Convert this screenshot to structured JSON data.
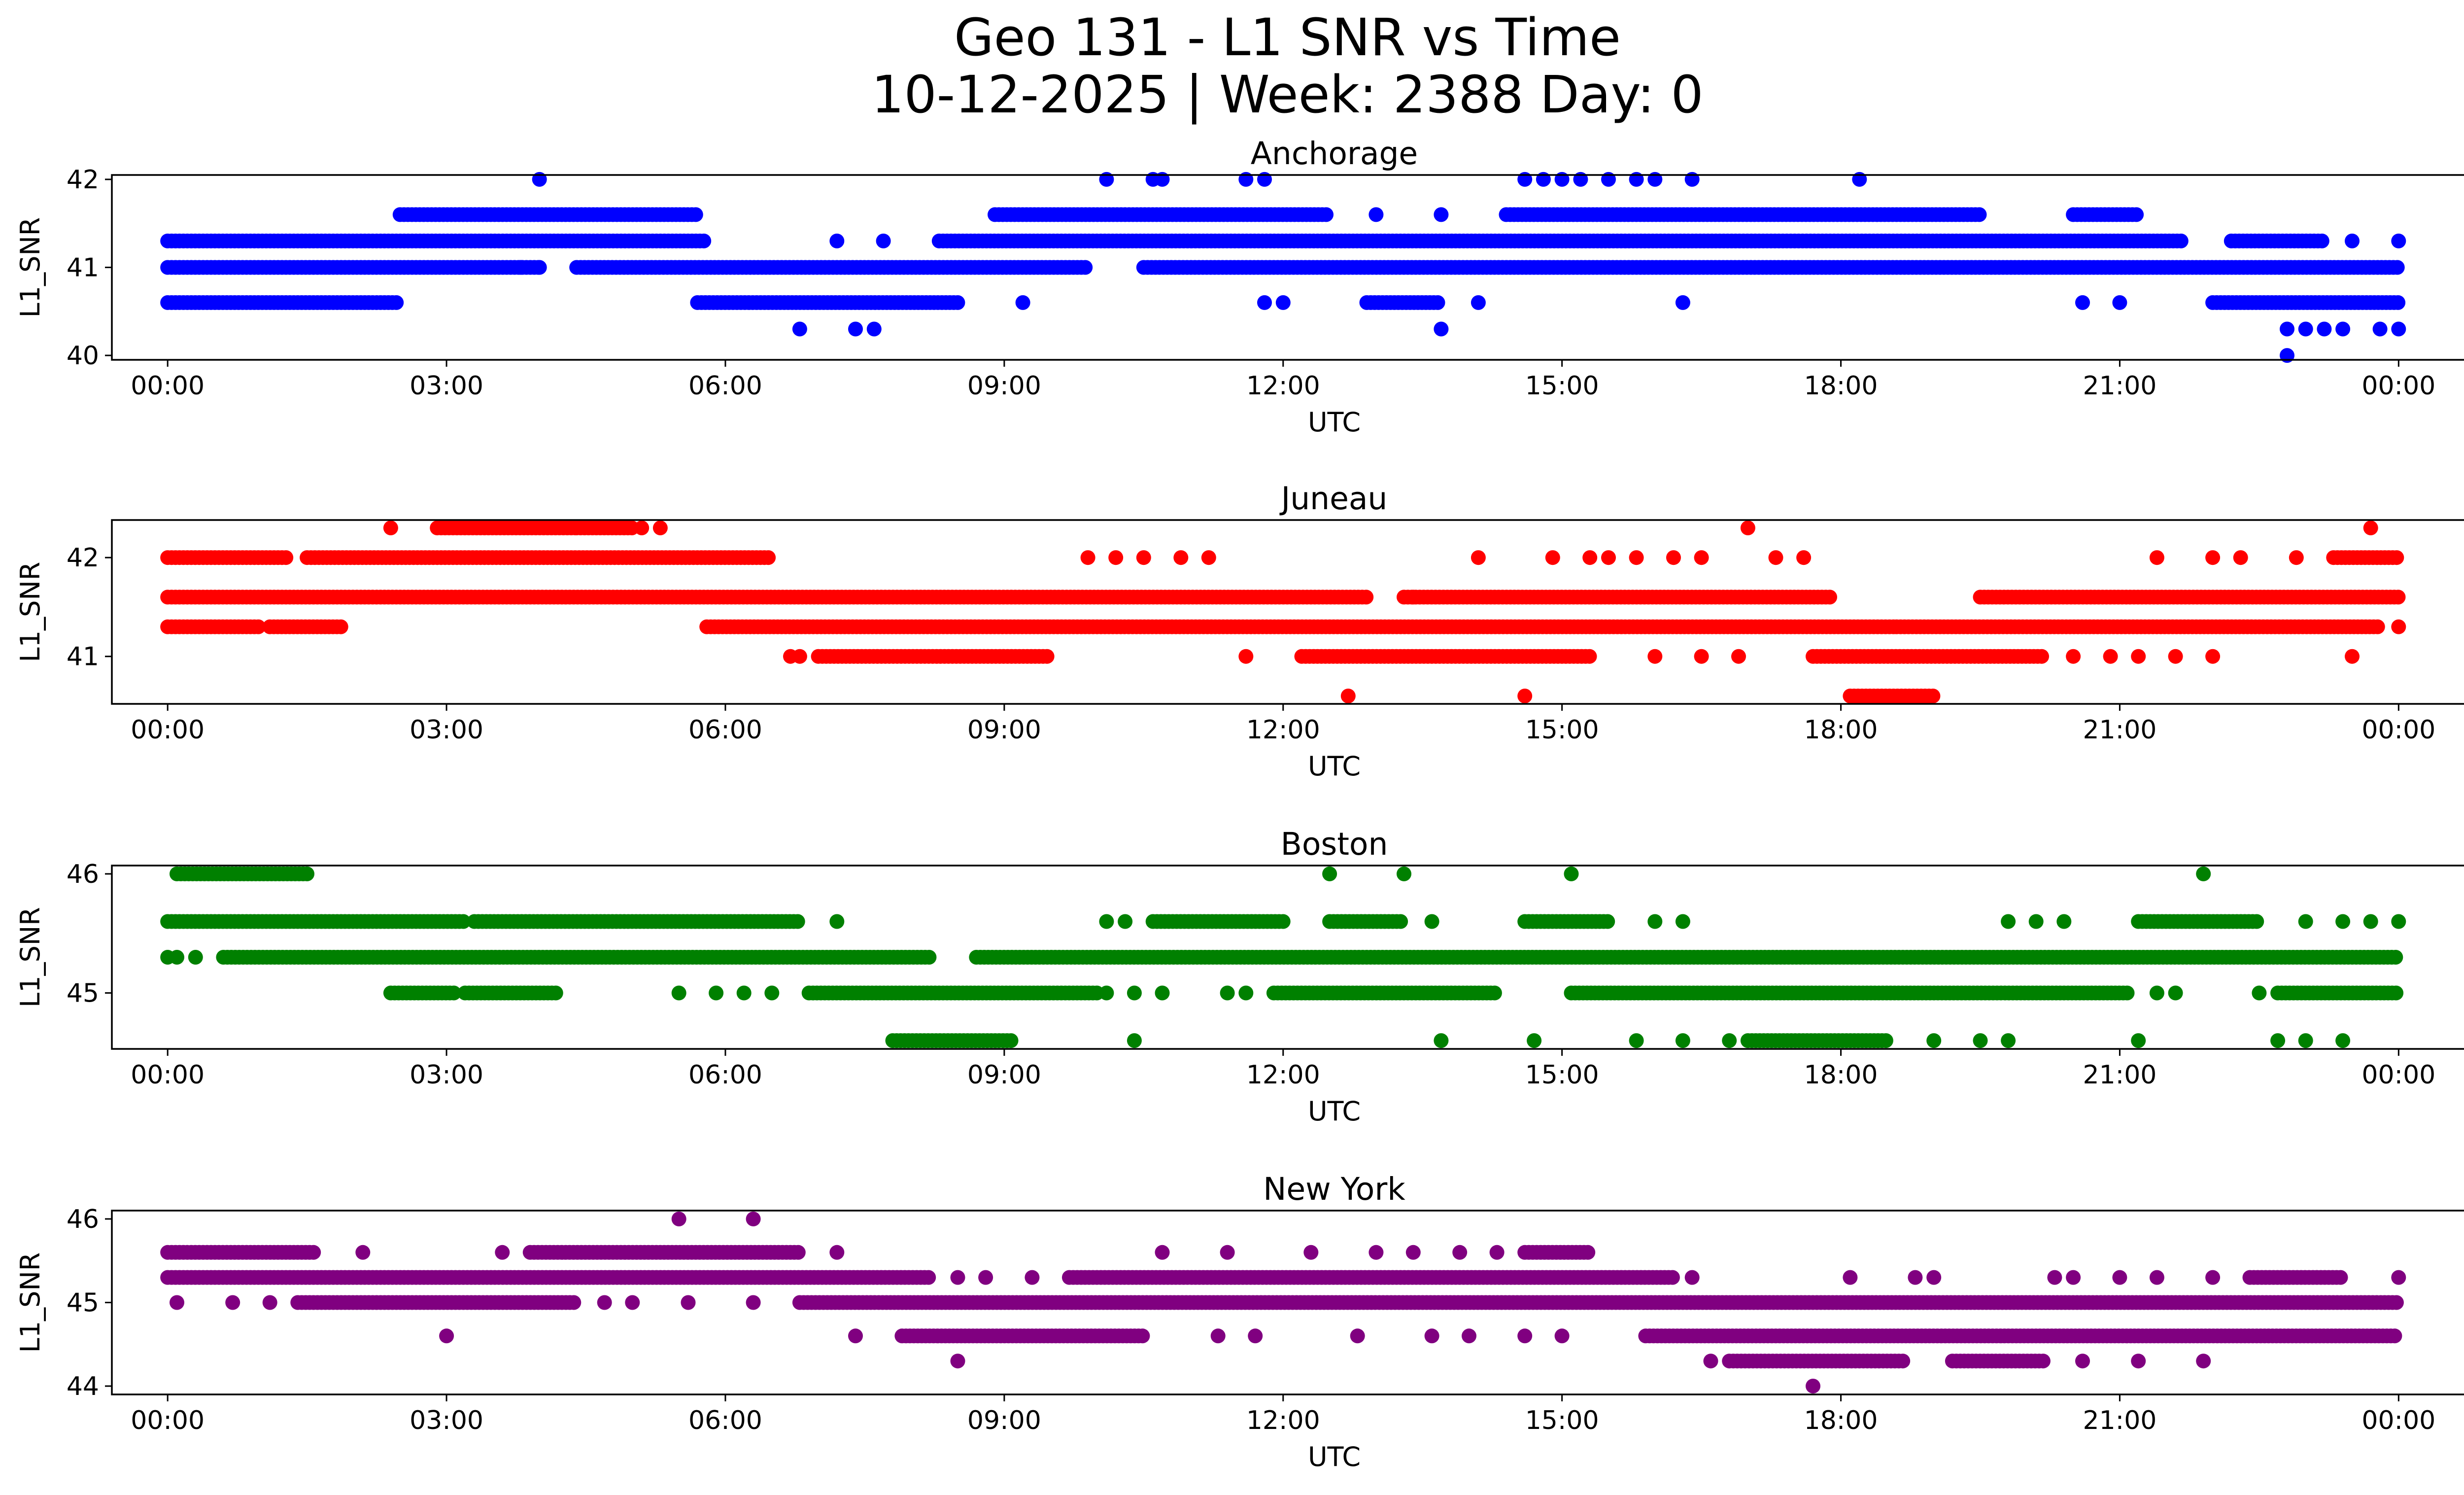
{
  "figure": {
    "title_line1": "Geo 131 - L1 SNR vs Time",
    "title_line2": "10-12-2025 | Week: 2388 Day: 0"
  },
  "chart_data": [
    {
      "type": "scatter",
      "title": "Anchorage",
      "xlabel": "UTC",
      "ylabel": "L1_SNR",
      "color": "#0000ff",
      "xlim_hours": [
        -0.6,
        25.7
      ],
      "ylim": [
        39.95,
        42.05
      ],
      "yticks": [
        40,
        41,
        42
      ],
      "xticks": [
        "00:00",
        "03:00",
        "06:00",
        "09:00",
        "12:00",
        "15:00",
        "18:00",
        "21:00",
        "00:00"
      ],
      "dense_bands": [
        {
          "y": 41.0,
          "segments": [
            [
              0.0,
              4.0
            ],
            [
              4.4,
              9.9
            ],
            [
              10.5,
              18.6
            ],
            [
              18.6,
              24.0
            ]
          ]
        },
        {
          "y": 41.3,
          "segments": [
            [
              0.0,
              5.8
            ],
            [
              8.3,
              21.7
            ],
            [
              22.2,
              23.2
            ]
          ]
        },
        {
          "y": 40.6,
          "segments": [
            [
              0.0,
              2.5
            ],
            [
              5.7,
              8.5
            ],
            [
              12.9,
              13.7
            ],
            [
              22.0,
              24.0
            ]
          ]
        },
        {
          "y": 41.6,
          "segments": [
            [
              2.5,
              5.7
            ],
            [
              8.9,
              12.5
            ],
            [
              14.4,
              19.5
            ],
            [
              20.5,
              21.2
            ]
          ]
        }
      ],
      "points": [
        [
          4.0,
          42.0
        ],
        [
          10.1,
          42.0
        ],
        [
          10.6,
          42.0
        ],
        [
          10.7,
          42.0
        ],
        [
          11.6,
          42.0
        ],
        [
          11.8,
          42.0
        ],
        [
          14.6,
          42.0
        ],
        [
          14.8,
          42.0
        ],
        [
          15.0,
          42.0
        ],
        [
          15.2,
          42.0
        ],
        [
          15.5,
          42.0
        ],
        [
          15.8,
          42.0
        ],
        [
          16.0,
          42.0
        ],
        [
          16.4,
          42.0
        ],
        [
          18.2,
          42.0
        ],
        [
          6.8,
          40.3
        ],
        [
          7.4,
          40.3
        ],
        [
          7.6,
          40.3
        ],
        [
          13.7,
          40.3
        ],
        [
          22.8,
          40.3
        ],
        [
          23.0,
          40.3
        ],
        [
          23.2,
          40.3
        ],
        [
          23.4,
          40.3
        ],
        [
          23.8,
          40.3
        ],
        [
          24.0,
          40.3
        ],
        [
          22.8,
          40.0
        ],
        [
          3.8,
          41.0
        ],
        [
          4.0,
          41.0
        ],
        [
          7.2,
          41.3
        ],
        [
          7.7,
          41.3
        ],
        [
          9.2,
          40.6
        ],
        [
          11.8,
          40.6
        ],
        [
          12.0,
          40.6
        ],
        [
          14.1,
          40.6
        ],
        [
          16.3,
          40.6
        ],
        [
          20.6,
          40.6
        ],
        [
          21.0,
          40.6
        ],
        [
          13.0,
          41.6
        ],
        [
          13.7,
          41.6
        ],
        [
          23.5,
          41.3
        ],
        [
          24.0,
          41.3
        ]
      ]
    },
    {
      "type": "scatter",
      "title": "Juneau",
      "xlabel": "UTC",
      "ylabel": "L1_SNR",
      "color": "#ff0000",
      "xlim_hours": [
        -0.6,
        25.7
      ],
      "ylim": [
        40.52,
        42.38
      ],
      "yticks": [
        41,
        42
      ],
      "xticks": [
        "00:00",
        "03:00",
        "06:00",
        "09:00",
        "12:00",
        "15:00",
        "18:00",
        "21:00",
        "00:00"
      ],
      "dense_bands": [
        {
          "y": 41.6,
          "segments": [
            [
              0.0,
              12.9
            ],
            [
              13.3,
              17.9
            ],
            [
              19.5,
              24.0
            ]
          ]
        },
        {
          "y": 42.0,
          "segments": [
            [
              0.0,
              1.3
            ],
            [
              1.5,
              6.5
            ],
            [
              23.3,
              24.0
            ]
          ]
        },
        {
          "y": 41.3,
          "segments": [
            [
              0.0,
              1.0
            ],
            [
              1.1,
              1.9
            ],
            [
              5.8,
              18.6
            ],
            [
              18.6,
              23.8
            ]
          ]
        },
        {
          "y": 42.3,
          "segments": [
            [
              2.9,
              4.4
            ],
            [
              4.4,
              5.0
            ]
          ]
        },
        {
          "y": 41.0,
          "segments": [
            [
              7.0,
              9.5
            ],
            [
              12.2,
              15.3
            ],
            [
              17.7,
              20.2
            ]
          ]
        },
        {
          "y": 40.6,
          "segments": [
            [
              18.1,
              19.0
            ]
          ]
        }
      ],
      "points": [
        [
          2.4,
          42.3
        ],
        [
          5.1,
          42.3
        ],
        [
          5.3,
          42.3
        ],
        [
          17.0,
          42.3
        ],
        [
          23.7,
          42.3
        ],
        [
          9.9,
          42.0
        ],
        [
          10.2,
          42.0
        ],
        [
          10.5,
          42.0
        ],
        [
          10.9,
          42.0
        ],
        [
          11.2,
          42.0
        ],
        [
          14.1,
          42.0
        ],
        [
          14.9,
          42.0
        ],
        [
          15.3,
          42.0
        ],
        [
          15.5,
          42.0
        ],
        [
          15.8,
          42.0
        ],
        [
          16.2,
          42.0
        ],
        [
          16.5,
          42.0
        ],
        [
          17.3,
          42.0
        ],
        [
          17.6,
          42.0
        ],
        [
          21.4,
          42.0
        ],
        [
          22.0,
          42.0
        ],
        [
          22.3,
          42.0
        ],
        [
          22.9,
          42.0
        ],
        [
          6.7,
          41.0
        ],
        [
          6.8,
          41.0
        ],
        [
          11.6,
          41.0
        ],
        [
          16.0,
          41.0
        ],
        [
          16.5,
          41.0
        ],
        [
          16.9,
          41.0
        ],
        [
          20.5,
          41.0
        ],
        [
          20.9,
          41.0
        ],
        [
          21.2,
          41.0
        ],
        [
          21.6,
          41.0
        ],
        [
          22.0,
          41.0
        ],
        [
          23.5,
          41.0
        ],
        [
          12.7,
          40.6
        ],
        [
          14.6,
          40.6
        ],
        [
          13.4,
          41.6
        ],
        [
          24.0,
          41.3
        ]
      ]
    },
    {
      "type": "scatter",
      "title": "Boston",
      "xlabel": "UTC",
      "ylabel": "L1_SNR",
      "color": "#008000",
      "xlim_hours": [
        -0.6,
        25.7
      ],
      "ylim": [
        44.53,
        46.07
      ],
      "yticks": [
        45,
        46
      ],
      "xticks": [
        "00:00",
        "03:00",
        "06:00",
        "09:00",
        "12:00",
        "15:00",
        "18:00",
        "21:00",
        "00:00"
      ],
      "dense_bands": [
        {
          "y": 45.6,
          "segments": [
            [
              0.0,
              3.2
            ],
            [
              3.3,
              6.8
            ],
            [
              10.6,
              12.0
            ],
            [
              12.5,
              13.3
            ],
            [
              14.6,
              15.5
            ],
            [
              21.2,
              22.5
            ]
          ]
        },
        {
          "y": 45.3,
          "segments": [
            [
              0.6,
              8.2
            ],
            [
              8.7,
              24.0
            ]
          ]
        },
        {
          "y": 45.0,
          "segments": [
            [
              2.4,
              3.1
            ],
            [
              3.2,
              4.2
            ],
            [
              6.9,
              10.0
            ],
            [
              11.9,
              14.3
            ],
            [
              15.1,
              21.1
            ],
            [
              22.7,
              24.0
            ]
          ]
        },
        {
          "y": 46.0,
          "segments": [
            [
              0.1,
              1.5
            ]
          ]
        },
        {
          "y": 44.6,
          "segments": [
            [
              7.8,
              9.1
            ],
            [
              17.0,
              18.5
            ]
          ]
        }
      ],
      "points": [
        [
          12.5,
          46.0
        ],
        [
          13.3,
          46.0
        ],
        [
          15.1,
          46.0
        ],
        [
          21.9,
          46.0
        ],
        [
          0.0,
          45.3
        ],
        [
          0.1,
          45.3
        ],
        [
          0.3,
          45.3
        ],
        [
          7.2,
          45.6
        ],
        [
          10.1,
          45.6
        ],
        [
          10.3,
          45.6
        ],
        [
          13.6,
          45.6
        ],
        [
          16.0,
          45.6
        ],
        [
          16.3,
          45.6
        ],
        [
          19.8,
          45.6
        ],
        [
          20.1,
          45.6
        ],
        [
          20.4,
          45.6
        ],
        [
          23.0,
          45.6
        ],
        [
          23.4,
          45.6
        ],
        [
          23.7,
          45.6
        ],
        [
          24.0,
          45.6
        ],
        [
          5.5,
          45.0
        ],
        [
          5.9,
          45.0
        ],
        [
          6.2,
          45.0
        ],
        [
          6.5,
          45.0
        ],
        [
          10.1,
          45.0
        ],
        [
          10.4,
          45.0
        ],
        [
          10.7,
          45.0
        ],
        [
          11.4,
          45.0
        ],
        [
          11.6,
          45.0
        ],
        [
          21.4,
          45.0
        ],
        [
          21.6,
          45.0
        ],
        [
          22.5,
          45.0
        ],
        [
          10.4,
          44.6
        ],
        [
          13.7,
          44.6
        ],
        [
          14.7,
          44.6
        ],
        [
          15.8,
          44.6
        ],
        [
          16.3,
          44.6
        ],
        [
          16.8,
          44.6
        ],
        [
          19.0,
          44.6
        ],
        [
          19.5,
          44.6
        ],
        [
          19.8,
          44.6
        ],
        [
          21.2,
          44.6
        ],
        [
          22.7,
          44.6
        ],
        [
          23.0,
          44.6
        ],
        [
          23.4,
          44.6
        ]
      ]
    },
    {
      "type": "scatter",
      "title": "New York",
      "xlabel": "UTC",
      "ylabel": "L1_SNR",
      "color": "#800080",
      "xlim_hours": [
        -0.6,
        25.7
      ],
      "ylim": [
        43.9,
        46.1
      ],
      "yticks": [
        44,
        45,
        46
      ],
      "xticks": [
        "00:00",
        "03:00",
        "06:00",
        "09:00",
        "12:00",
        "15:00",
        "18:00",
        "21:00",
        "00:00"
      ],
      "dense_bands": [
        {
          "y": 45.6,
          "segments": [
            [
              0.0,
              1.6
            ],
            [
              3.9,
              6.8
            ],
            [
              14.6,
              15.3
            ]
          ]
        },
        {
          "y": 45.3,
          "segments": [
            [
              0.0,
              8.2
            ],
            [
              9.7,
              16.2
            ],
            [
              22.4,
              23.4
            ]
          ]
        },
        {
          "y": 45.0,
          "segments": [
            [
              1.4,
              4.4
            ],
            [
              6.8,
              24.0
            ]
          ]
        },
        {
          "y": 44.6,
          "segments": [
            [
              7.9,
              10.5
            ],
            [
              15.9,
              24.0
            ]
          ]
        },
        {
          "y": 44.3,
          "segments": [
            [
              16.8,
              18.7
            ],
            [
              19.2,
              20.2
            ]
          ]
        }
      ],
      "points": [
        [
          5.5,
          46.0
        ],
        [
          6.3,
          46.0
        ],
        [
          1.1,
          45.0
        ],
        [
          0.7,
          45.0
        ],
        [
          0.1,
          45.0
        ],
        [
          4.7,
          45.0
        ],
        [
          5.0,
          45.0
        ],
        [
          5.6,
          45.0
        ],
        [
          6.3,
          45.0
        ],
        [
          2.1,
          45.6
        ],
        [
          3.6,
          45.6
        ],
        [
          7.2,
          45.6
        ],
        [
          10.7,
          45.6
        ],
        [
          11.4,
          45.6
        ],
        [
          12.3,
          45.6
        ],
        [
          13.0,
          45.6
        ],
        [
          13.4,
          45.6
        ],
        [
          13.9,
          45.6
        ],
        [
          14.3,
          45.6
        ],
        [
          8.5,
          45.3
        ],
        [
          8.8,
          45.3
        ],
        [
          9.3,
          45.3
        ],
        [
          16.4,
          45.3
        ],
        [
          18.1,
          45.3
        ],
        [
          18.8,
          45.3
        ],
        [
          19.0,
          45.3
        ],
        [
          20.3,
          45.3
        ],
        [
          20.5,
          45.3
        ],
        [
          21.0,
          45.3
        ],
        [
          21.4,
          45.3
        ],
        [
          22.0,
          45.3
        ],
        [
          24.0,
          45.3
        ],
        [
          3.0,
          44.6
        ],
        [
          7.4,
          44.6
        ],
        [
          11.3,
          44.6
        ],
        [
          11.7,
          44.6
        ],
        [
          12.8,
          44.6
        ],
        [
          13.6,
          44.6
        ],
        [
          14.0,
          44.6
        ],
        [
          14.6,
          44.6
        ],
        [
          15.0,
          44.6
        ],
        [
          8.5,
          44.3
        ],
        [
          16.6,
          44.3
        ],
        [
          20.6,
          44.3
        ],
        [
          21.2,
          44.3
        ],
        [
          21.9,
          44.3
        ],
        [
          17.7,
          44.0
        ]
      ]
    }
  ]
}
